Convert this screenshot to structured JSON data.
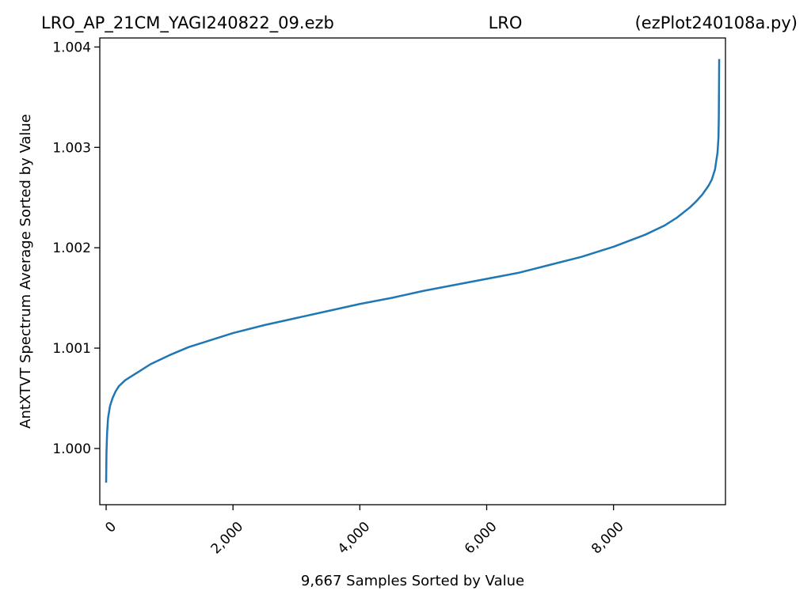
{
  "chart_data": {
    "type": "line",
    "title_left": "LRO_AP_21CM_YAGI240822_09.ezb",
    "title_center": "LRO",
    "title_right": "(ezPlot240108a.py)",
    "xlabel": "9,667 Samples Sorted by Value",
    "ylabel": "AntXTVT Spectrum Average Sorted by Value",
    "xlim": [
      -100,
      9765
    ],
    "ylim": [
      0.99944,
      1.00409
    ],
    "xticks": [
      0,
      2000,
      4000,
      6000,
      8000
    ],
    "xtick_labels": [
      "0",
      "2,000",
      "4,000",
      "6,000",
      "8,000"
    ],
    "yticks": [
      1.0,
      1.001,
      1.002,
      1.003,
      1.004
    ],
    "ytick_labels": [
      "1.000",
      "1.001",
      "1.002",
      "1.003",
      "1.004"
    ],
    "grid": false,
    "series": [
      {
        "color": "#1f77b4",
        "x": [
          0,
          5,
          15,
          30,
          60,
          100,
          150,
          200,
          300,
          400,
          500,
          700,
          1000,
          1300,
          1600,
          2000,
          2500,
          3000,
          3500,
          4000,
          4500,
          5000,
          5500,
          6000,
          6500,
          7000,
          7500,
          8000,
          8500,
          8800,
          9000,
          9200,
          9300,
          9400,
          9500,
          9550,
          9600,
          9640,
          9655,
          9660,
          9666
        ],
        "y": [
          0.99966,
          0.99995,
          1.00015,
          1.0003,
          1.00042,
          1.0005,
          1.00057,
          1.00062,
          1.00068,
          1.00072,
          1.00076,
          1.00084,
          1.00093,
          1.00101,
          1.00107,
          1.00115,
          1.00123,
          1.0013,
          1.00137,
          1.00144,
          1.0015,
          1.00157,
          1.00163,
          1.00169,
          1.00175,
          1.00183,
          1.00191,
          1.00201,
          1.00213,
          1.00222,
          1.0023,
          1.0024,
          1.00246,
          1.00253,
          1.00262,
          1.00268,
          1.00278,
          1.00295,
          1.0031,
          1.0033,
          1.00388
        ]
      }
    ]
  }
}
